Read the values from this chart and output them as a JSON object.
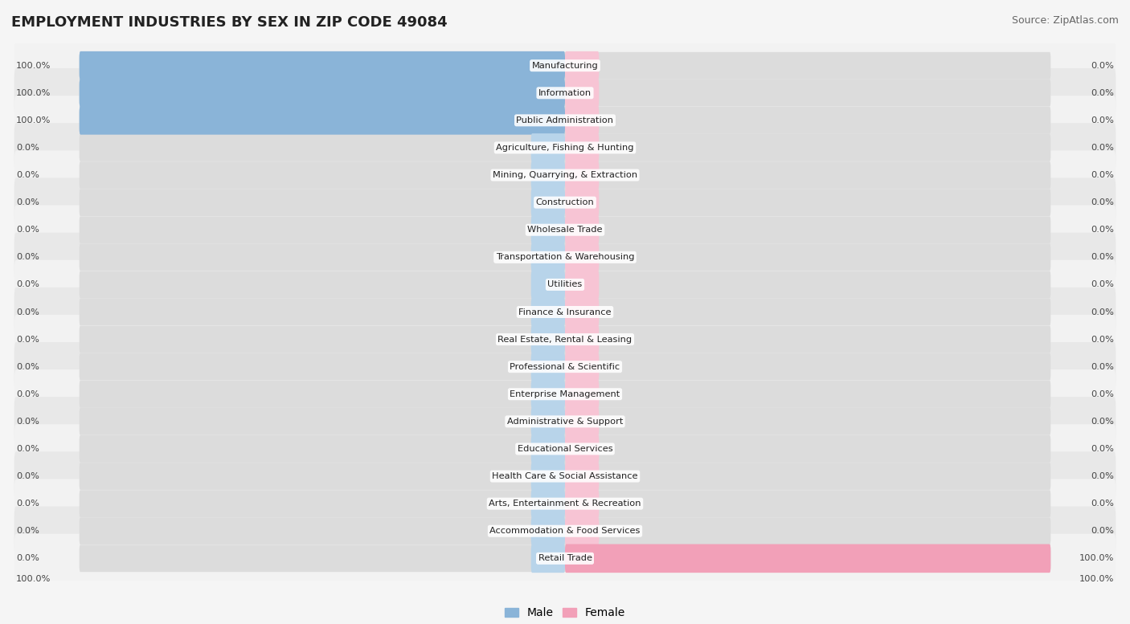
{
  "title": "EMPLOYMENT INDUSTRIES BY SEX IN ZIP CODE 49084",
  "source": "Source: ZipAtlas.com",
  "categories": [
    "Manufacturing",
    "Information",
    "Public Administration",
    "Agriculture, Fishing & Hunting",
    "Mining, Quarrying, & Extraction",
    "Construction",
    "Wholesale Trade",
    "Transportation & Warehousing",
    "Utilities",
    "Finance & Insurance",
    "Real Estate, Rental & Leasing",
    "Professional & Scientific",
    "Enterprise Management",
    "Administrative & Support",
    "Educational Services",
    "Health Care & Social Assistance",
    "Arts, Entertainment & Recreation",
    "Accommodation & Food Services",
    "Retail Trade"
  ],
  "male": [
    100.0,
    100.0,
    100.0,
    0.0,
    0.0,
    0.0,
    0.0,
    0.0,
    0.0,
    0.0,
    0.0,
    0.0,
    0.0,
    0.0,
    0.0,
    0.0,
    0.0,
    0.0,
    0.0
  ],
  "female": [
    0.0,
    0.0,
    0.0,
    0.0,
    0.0,
    0.0,
    0.0,
    0.0,
    0.0,
    0.0,
    0.0,
    0.0,
    0.0,
    0.0,
    0.0,
    0.0,
    0.0,
    0.0,
    100.0
  ],
  "male_color": "#8ab4d8",
  "female_color": "#f2a0b8",
  "male_stub_color": "#b8d4ea",
  "female_stub_color": "#f7c4d4",
  "bg_row_even": "#f2f2f2",
  "bg_row_odd": "#e8e8e8",
  "bar_track_color": "#dcdcdc",
  "male_label": "Male",
  "female_label": "Female",
  "title_fontsize": 13,
  "label_fontsize": 8.2,
  "source_fontsize": 9,
  "xlim": 100,
  "stub_size": 7
}
